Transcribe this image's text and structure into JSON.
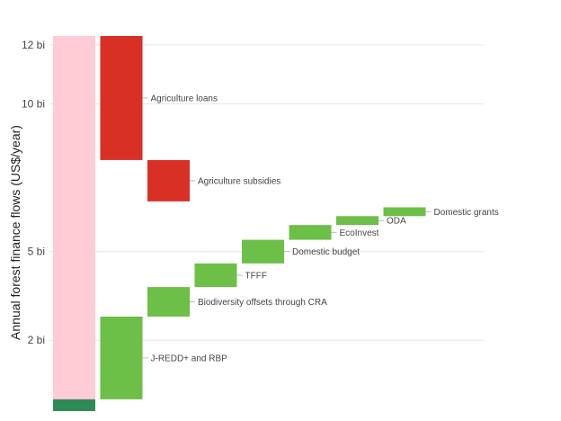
{
  "chart_data": {
    "type": "bar",
    "subtype": "waterfall",
    "ylabel": "Annual forest finance flows (US$/year)",
    "yticks": [
      {
        "value": 2,
        "label": "2 bi"
      },
      {
        "value": 5,
        "label": "5 bi"
      },
      {
        "value": 10,
        "label": "10 bi"
      },
      {
        "value": 12,
        "label": "12 bi"
      }
    ],
    "ylim": [
      -0.4,
      12.3
    ],
    "grid": true,
    "total_bar": {
      "total": 12.3,
      "green_part": 0.4,
      "colors": {
        "total": "#ffccd5",
        "green": "#2e8b57"
      }
    },
    "bars": [
      {
        "label": "Agriculture loans",
        "start": 12.3,
        "end": 8.1,
        "color": "#d93025"
      },
      {
        "label": "Agriculture subsidies",
        "start": 8.1,
        "end": 6.7,
        "color": "#d93025"
      },
      {
        "label": "J-REDD+ and RBP",
        "start": 0.0,
        "end": 2.8,
        "color": "#6cbf47"
      },
      {
        "label": "Biodiversity offsets through CRA",
        "start": 2.8,
        "end": 3.8,
        "color": "#6cbf47"
      },
      {
        "label": "TFFF",
        "start": 3.8,
        "end": 4.6,
        "color": "#6cbf47"
      },
      {
        "label": "Domestic budget",
        "start": 4.6,
        "end": 5.4,
        "color": "#6cbf47"
      },
      {
        "label": "EcoInvest",
        "start": 5.4,
        "end": 5.9,
        "color": "#6cbf47"
      },
      {
        "label": "ODA",
        "start": 5.9,
        "end": 6.2,
        "color": "#6cbf47"
      },
      {
        "label": "Domestic grants",
        "start": 6.2,
        "end": 6.5,
        "color": "#6cbf47"
      }
    ]
  }
}
